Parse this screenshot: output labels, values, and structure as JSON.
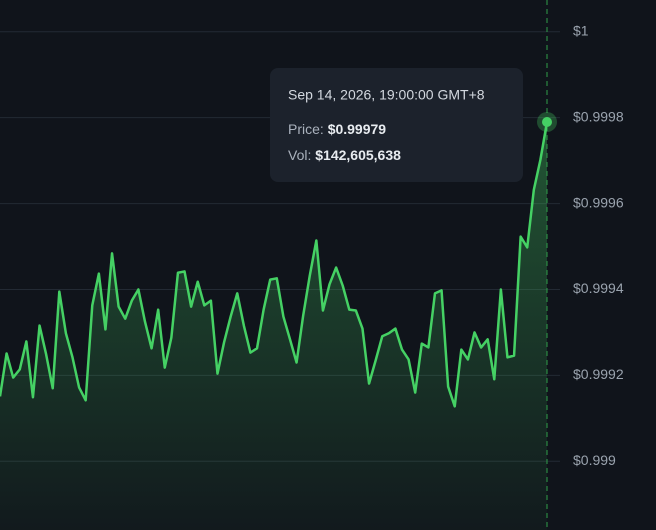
{
  "chart_data": {
    "type": "line",
    "values": [
      0.999151,
      0.999251,
      0.999195,
      0.999214,
      0.999279,
      0.999149,
      0.999316,
      0.999249,
      0.99917,
      0.999395,
      0.999298,
      0.999242,
      0.999172,
      0.999142,
      0.999363,
      0.999437,
      0.999307,
      0.999484,
      0.99936,
      0.999332,
      0.999374,
      0.9994,
      0.999325,
      0.999263,
      0.999353,
      0.999218,
      0.999288,
      0.999439,
      0.999442,
      0.99936,
      0.999418,
      0.999363,
      0.999374,
      0.999204,
      0.999277,
      0.999337,
      0.999391,
      0.999316,
      0.999253,
      0.999263,
      0.999353,
      0.999423,
      0.999426,
      0.999337,
      0.999284,
      0.99923,
      0.999339,
      0.999432,
      0.999514,
      0.999351,
      0.999412,
      0.999451,
      0.999409,
      0.999353,
      0.999351,
      0.999309,
      0.999181,
      0.999235,
      0.999291,
      0.999298,
      0.999309,
      0.99926,
      0.999237,
      0.99916,
      0.999274,
      0.999265,
      0.999391,
      0.999398,
      0.999174,
      0.999128,
      0.99926,
      0.999237,
      0.9993,
      0.999265,
      0.999284,
      0.999191,
      0.9994,
      0.999242,
      0.999246,
      0.999523,
      0.999498,
      0.999632,
      0.999702,
      0.99979
    ],
    "color": "#45d164",
    "ylim": [
      0.99884,
      1.000074
    ],
    "yticks": [
      {
        "value": 0.999,
        "label": "$0.999"
      },
      {
        "value": 0.9992,
        "label": "$0.9992"
      },
      {
        "value": 0.9994,
        "label": "$0.9994"
      },
      {
        "value": 0.9996,
        "label": "$0.9996"
      },
      {
        "value": 0.9998,
        "label": "$0.9998"
      },
      {
        "value": 1,
        "label": "$1"
      }
    ],
    "grid": true,
    "tooltip": {
      "date": "Sep 14, 2026, 19:00:00 GMT+8",
      "price_label": "Price:",
      "price": "$0.99979",
      "vol_label": "Vol:",
      "vol": "$142,605,638"
    }
  }
}
